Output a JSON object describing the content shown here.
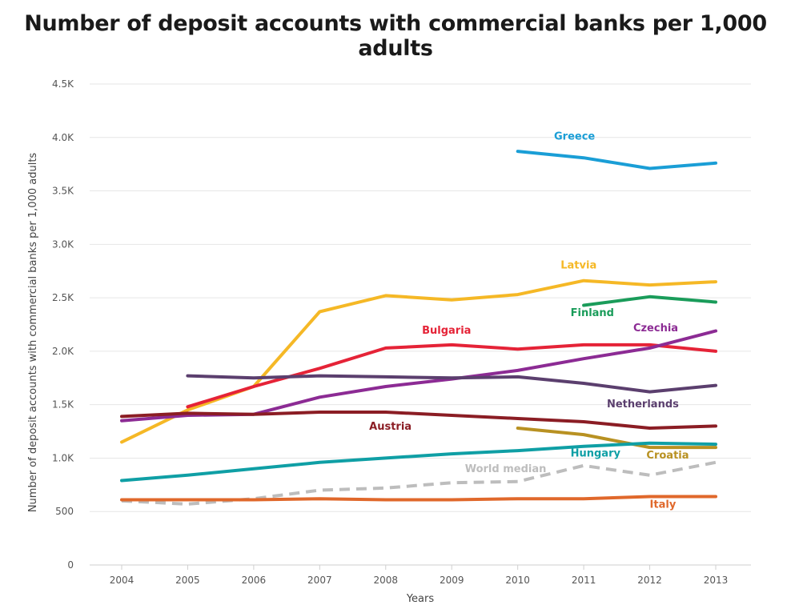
{
  "chart_data": {
    "type": "line",
    "title": "Number of deposit accounts with commercial banks per 1,000 adults",
    "xlabel": "Years",
    "ylabel": "Number of deposit accounts with commercial banks per 1,000 adults",
    "x": [
      2004,
      2005,
      2006,
      2007,
      2008,
      2009,
      2010,
      2011,
      2012,
      2013
    ],
    "x_tick_labels": [
      "2004",
      "2005",
      "2006",
      "2007",
      "2008",
      "2009",
      "2010",
      "2011",
      "2012",
      "2013"
    ],
    "ylim": [
      0,
      4500
    ],
    "y_ticks": [
      0,
      500,
      1000,
      1500,
      2000,
      2500,
      3000,
      3500,
      4000,
      4500
    ],
    "y_tick_labels": [
      "0",
      "500",
      "1.0K",
      "1.5K",
      "2.0K",
      "2.5K",
      "3.0K",
      "3.5K",
      "4.0K",
      "4.5K"
    ],
    "grid": true,
    "series": [
      {
        "name": "Greece",
        "color": "#1a9ed6",
        "dashed": false,
        "values": [
          null,
          null,
          null,
          null,
          null,
          null,
          3870,
          3810,
          3710,
          3760
        ]
      },
      {
        "name": "Latvia",
        "color": "#f5b826",
        "dashed": false,
        "values": [
          1150,
          1450,
          1670,
          2370,
          2520,
          2480,
          2530,
          2660,
          2620,
          2650
        ]
      },
      {
        "name": "Finland",
        "color": "#1a9c5a",
        "dashed": false,
        "values": [
          null,
          null,
          null,
          null,
          null,
          null,
          null,
          2430,
          2510,
          2460
        ]
      },
      {
        "name": "Bulgaria",
        "color": "#e52337",
        "dashed": false,
        "values": [
          null,
          1480,
          1670,
          1840,
          2030,
          2060,
          2020,
          2060,
          2060,
          2000
        ]
      },
      {
        "name": "Czechia",
        "color": "#8c2b94",
        "dashed": false,
        "values": [
          1350,
          1400,
          1410,
          1570,
          1670,
          1740,
          1820,
          1930,
          2030,
          2190
        ]
      },
      {
        "name": "Netherlands",
        "color": "#5b3f6e",
        "dashed": false,
        "values": [
          null,
          1770,
          1750,
          1770,
          1760,
          1750,
          1760,
          1700,
          1620,
          1680
        ]
      },
      {
        "name": "Austria",
        "color": "#8b1d24",
        "dashed": false,
        "values": [
          1390,
          1420,
          1410,
          1430,
          1430,
          1400,
          1370,
          1340,
          1280,
          1300
        ]
      },
      {
        "name": "Croatia",
        "color": "#b89122",
        "dashed": false,
        "values": [
          null,
          null,
          null,
          null,
          null,
          null,
          1280,
          1220,
          1100,
          1100
        ]
      },
      {
        "name": "Hungary",
        "color": "#0f9fa5",
        "dashed": false,
        "values": [
          790,
          840,
          900,
          960,
          1000,
          1040,
          1070,
          1110,
          1140,
          1130
        ]
      },
      {
        "name": "World median",
        "color": "#bdbdbd",
        "dashed": true,
        "values": [
          600,
          570,
          620,
          700,
          720,
          770,
          780,
          930,
          840,
          960
        ]
      },
      {
        "name": "Italy",
        "color": "#e0682b",
        "dashed": false,
        "values": [
          610,
          610,
          610,
          620,
          610,
          610,
          620,
          620,
          640,
          640
        ]
      }
    ],
    "labels": [
      {
        "series": "Greece",
        "text": "Greece",
        "x": 2010.55,
        "y": 3980,
        "color": "#1a9ed6"
      },
      {
        "series": "Latvia",
        "text": "Latvia",
        "x": 2010.65,
        "y": 2775,
        "color": "#f5b826"
      },
      {
        "series": "Finland",
        "text": "Finland",
        "x": 2010.8,
        "y": 2330,
        "color": "#1a9c5a"
      },
      {
        "series": "Bulgaria",
        "text": "Bulgaria",
        "x": 2008.55,
        "y": 2165,
        "color": "#e52337"
      },
      {
        "series": "Czechia",
        "text": "Czechia",
        "x": 2011.75,
        "y": 2185,
        "color": "#8c2b94"
      },
      {
        "series": "Netherlands",
        "text": "Netherlands",
        "x": 2011.35,
        "y": 1475,
        "color": "#5b3f6e"
      },
      {
        "series": "Austria",
        "text": "Austria",
        "x": 2007.75,
        "y": 1265,
        "color": "#8b1d24"
      },
      {
        "series": "Croatia",
        "text": "Croatia",
        "x": 2011.95,
        "y": 995,
        "color": "#b89122"
      },
      {
        "series": "Hungary",
        "text": "Hungary",
        "x": 2010.8,
        "y": 1015,
        "color": "#0f9fa5"
      },
      {
        "series": "World median",
        "text": "World median",
        "x": 2009.2,
        "y": 870,
        "color": "#bdbdbd"
      },
      {
        "series": "Italy",
        "text": "Italy",
        "x": 2012.0,
        "y": 535,
        "color": "#e0682b"
      }
    ]
  }
}
